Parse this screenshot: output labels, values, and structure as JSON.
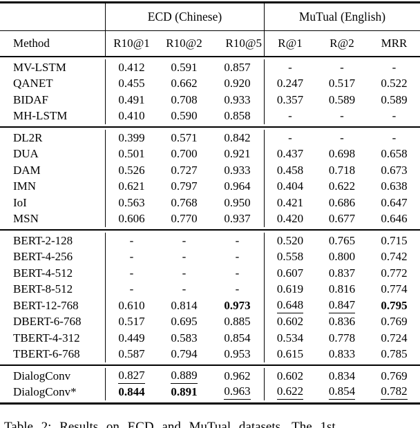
{
  "table": {
    "group_header": {
      "ecd": "ECD (Chinese)",
      "mutual": "MuTual (English)"
    },
    "columns": {
      "method": "Method",
      "metrics": [
        "R10@1",
        "R10@2",
        "R10@5",
        "R@1",
        "R@2",
        "MRR"
      ]
    },
    "sections": [
      {
        "rows": [
          {
            "method": "MV-LSTM",
            "cells": [
              {
                "t": "0.412",
                "s": ""
              },
              {
                "t": "0.591",
                "s": ""
              },
              {
                "t": "0.857",
                "s": ""
              },
              {
                "t": "-",
                "s": ""
              },
              {
                "t": "-",
                "s": ""
              },
              {
                "t": "-",
                "s": ""
              }
            ]
          },
          {
            "method": "QANET",
            "cells": [
              {
                "t": "0.455",
                "s": ""
              },
              {
                "t": "0.662",
                "s": ""
              },
              {
                "t": "0.920",
                "s": ""
              },
              {
                "t": "0.247",
                "s": ""
              },
              {
                "t": "0.517",
                "s": ""
              },
              {
                "t": "0.522",
                "s": ""
              }
            ]
          },
          {
            "method": "BIDAF",
            "cells": [
              {
                "t": "0.491",
                "s": ""
              },
              {
                "t": "0.708",
                "s": ""
              },
              {
                "t": "0.933",
                "s": ""
              },
              {
                "t": "0.357",
                "s": ""
              },
              {
                "t": "0.589",
                "s": ""
              },
              {
                "t": "0.589",
                "s": ""
              }
            ]
          },
          {
            "method": "MH-LSTM",
            "cells": [
              {
                "t": "0.410",
                "s": ""
              },
              {
                "t": "0.590",
                "s": ""
              },
              {
                "t": "0.858",
                "s": ""
              },
              {
                "t": "-",
                "s": ""
              },
              {
                "t": "-",
                "s": ""
              },
              {
                "t": "-",
                "s": ""
              }
            ]
          }
        ]
      },
      {
        "rows": [
          {
            "method": "DL2R",
            "cells": [
              {
                "t": "0.399",
                "s": ""
              },
              {
                "t": "0.571",
                "s": ""
              },
              {
                "t": "0.842",
                "s": ""
              },
              {
                "t": "-",
                "s": ""
              },
              {
                "t": "-",
                "s": ""
              },
              {
                "t": "-",
                "s": ""
              }
            ]
          },
          {
            "method": "DUA",
            "cells": [
              {
                "t": "0.501",
                "s": ""
              },
              {
                "t": "0.700",
                "s": ""
              },
              {
                "t": "0.921",
                "s": ""
              },
              {
                "t": "0.437",
                "s": ""
              },
              {
                "t": "0.698",
                "s": ""
              },
              {
                "t": "0.658",
                "s": ""
              }
            ]
          },
          {
            "method": "DAM",
            "cells": [
              {
                "t": "0.526",
                "s": ""
              },
              {
                "t": "0.727",
                "s": ""
              },
              {
                "t": "0.933",
                "s": ""
              },
              {
                "t": "0.458",
                "s": ""
              },
              {
                "t": "0.718",
                "s": ""
              },
              {
                "t": "0.673",
                "s": ""
              }
            ]
          },
          {
            "method": "IMN",
            "cells": [
              {
                "t": "0.621",
                "s": ""
              },
              {
                "t": "0.797",
                "s": ""
              },
              {
                "t": "0.964",
                "s": ""
              },
              {
                "t": "0.404",
                "s": ""
              },
              {
                "t": "0.622",
                "s": ""
              },
              {
                "t": "0.638",
                "s": ""
              }
            ]
          },
          {
            "method": "IoI",
            "cells": [
              {
                "t": "0.563",
                "s": ""
              },
              {
                "t": "0.768",
                "s": ""
              },
              {
                "t": "0.950",
                "s": ""
              },
              {
                "t": "0.421",
                "s": ""
              },
              {
                "t": "0.686",
                "s": ""
              },
              {
                "t": "0.647",
                "s": ""
              }
            ]
          },
          {
            "method": "MSN",
            "cells": [
              {
                "t": "0.606",
                "s": ""
              },
              {
                "t": "0.770",
                "s": ""
              },
              {
                "t": "0.937",
                "s": ""
              },
              {
                "t": "0.420",
                "s": ""
              },
              {
                "t": "0.677",
                "s": ""
              },
              {
                "t": "0.646",
                "s": ""
              }
            ]
          }
        ]
      },
      {
        "rows": [
          {
            "method": "BERT-2-128",
            "cells": [
              {
                "t": "-",
                "s": ""
              },
              {
                "t": "-",
                "s": ""
              },
              {
                "t": "-",
                "s": ""
              },
              {
                "t": "0.520",
                "s": ""
              },
              {
                "t": "0.765",
                "s": ""
              },
              {
                "t": "0.715",
                "s": ""
              }
            ]
          },
          {
            "method": "BERT-4-256",
            "cells": [
              {
                "t": "-",
                "s": ""
              },
              {
                "t": "-",
                "s": ""
              },
              {
                "t": "-",
                "s": ""
              },
              {
                "t": "0.558",
                "s": ""
              },
              {
                "t": "0.800",
                "s": ""
              },
              {
                "t": "0.742",
                "s": ""
              }
            ]
          },
          {
            "method": "BERT-4-512",
            "cells": [
              {
                "t": "-",
                "s": ""
              },
              {
                "t": "-",
                "s": ""
              },
              {
                "t": "-",
                "s": ""
              },
              {
                "t": "0.607",
                "s": ""
              },
              {
                "t": "0.837",
                "s": ""
              },
              {
                "t": "0.772",
                "s": ""
              }
            ]
          },
          {
            "method": "BERT-8-512",
            "cells": [
              {
                "t": "-",
                "s": ""
              },
              {
                "t": "-",
                "s": ""
              },
              {
                "t": "-",
                "s": ""
              },
              {
                "t": "0.619",
                "s": ""
              },
              {
                "t": "0.816",
                "s": ""
              },
              {
                "t": "0.774",
                "s": ""
              }
            ]
          },
          {
            "method": "BERT-12-768",
            "cells": [
              {
                "t": "0.610",
                "s": ""
              },
              {
                "t": "0.814",
                "s": ""
              },
              {
                "t": "0.973",
                "s": "b"
              },
              {
                "t": "0.648",
                "s": "u"
              },
              {
                "t": "0.847",
                "s": "u"
              },
              {
                "t": "0.795",
                "s": "b"
              }
            ]
          },
          {
            "method": "DBERT-6-768",
            "cells": [
              {
                "t": "0.517",
                "s": ""
              },
              {
                "t": "0.695",
                "s": ""
              },
              {
                "t": "0.885",
                "s": ""
              },
              {
                "t": "0.602",
                "s": ""
              },
              {
                "t": "0.836",
                "s": ""
              },
              {
                "t": "0.769",
                "s": ""
              }
            ]
          },
          {
            "method": "TBERT-4-312",
            "cells": [
              {
                "t": "0.449",
                "s": ""
              },
              {
                "t": "0.583",
                "s": ""
              },
              {
                "t": "0.854",
                "s": ""
              },
              {
                "t": "0.534",
                "s": ""
              },
              {
                "t": "0.778",
                "s": ""
              },
              {
                "t": "0.724",
                "s": ""
              }
            ]
          },
          {
            "method": "TBERT-6-768",
            "cells": [
              {
                "t": "0.587",
                "s": ""
              },
              {
                "t": "0.794",
                "s": ""
              },
              {
                "t": "0.953",
                "s": ""
              },
              {
                "t": "0.615",
                "s": ""
              },
              {
                "t": "0.833",
                "s": ""
              },
              {
                "t": "0.785",
                "s": ""
              }
            ]
          }
        ]
      },
      {
        "rows": [
          {
            "method": "DialogConv",
            "cells": [
              {
                "t": "0.827",
                "s": "u"
              },
              {
                "t": "0.889",
                "s": "u"
              },
              {
                "t": "0.962",
                "s": ""
              },
              {
                "t": "0.602",
                "s": ""
              },
              {
                "t": "0.834",
                "s": ""
              },
              {
                "t": "0.769",
                "s": ""
              }
            ]
          },
          {
            "method": "DialogConv*",
            "cells": [
              {
                "t": "0.844",
                "s": "b"
              },
              {
                "t": "0.891",
                "s": "b"
              },
              {
                "t": "0.963",
                "s": "u"
              },
              {
                "t": "0.622",
                "s": "u"
              },
              {
                "t": "0.854",
                "s": "u"
              },
              {
                "t": "0.782",
                "s": "u"
              }
            ]
          }
        ]
      }
    ]
  },
  "caption": {
    "text": "Table 2: Results on ECD and MuTual datasets. The 1st"
  },
  "colors": {
    "text": "#000000",
    "background": "#ffffff",
    "rule": "#000000"
  }
}
